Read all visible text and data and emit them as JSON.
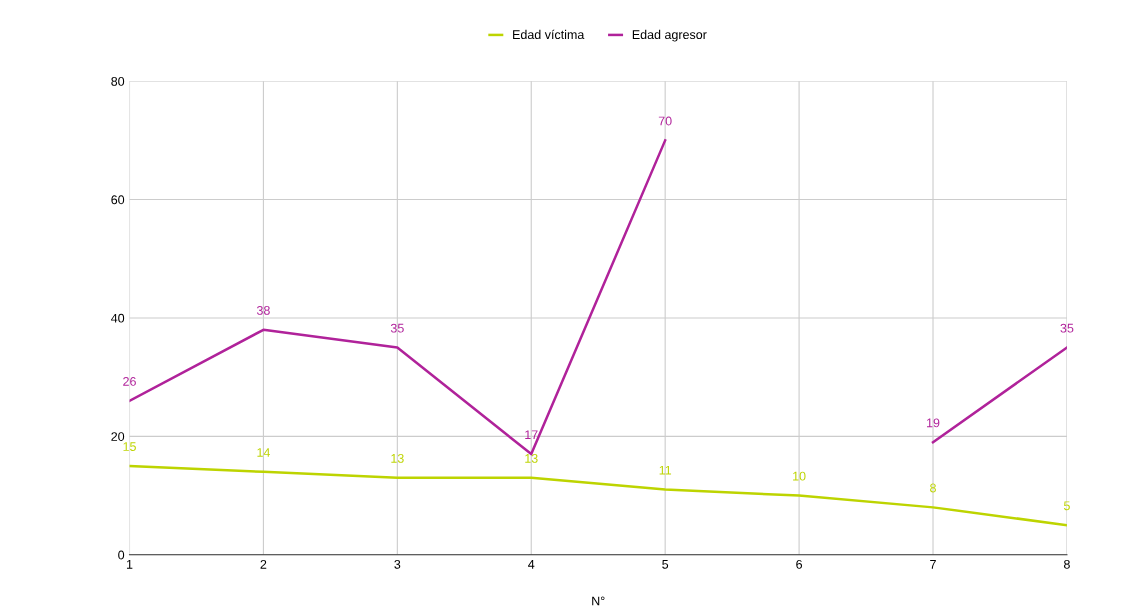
{
  "chart_data": {
    "type": "line",
    "xlabel": "N°",
    "x": [
      1,
      2,
      3,
      4,
      5,
      6,
      7,
      8
    ],
    "series": [
      {
        "name": "Edad víctima",
        "color": "#bdd400",
        "values": [
          15,
          14,
          13,
          13,
          11,
          10,
          8,
          5
        ]
      },
      {
        "name": "Edad agresor",
        "color": "#b0229a",
        "values": [
          26,
          38,
          35,
          17,
          70,
          null,
          19,
          35
        ]
      }
    ],
    "xlim": [
      1,
      8
    ],
    "xticks": [
      1,
      2,
      3,
      4,
      5,
      6,
      7,
      8
    ],
    "ylim": [
      0,
      80
    ],
    "yticks": [
      0,
      20,
      40,
      60,
      80
    ],
    "grid": true,
    "legend": "top",
    "data_labels": true,
    "marker": "none",
    "line_style": "solid"
  }
}
